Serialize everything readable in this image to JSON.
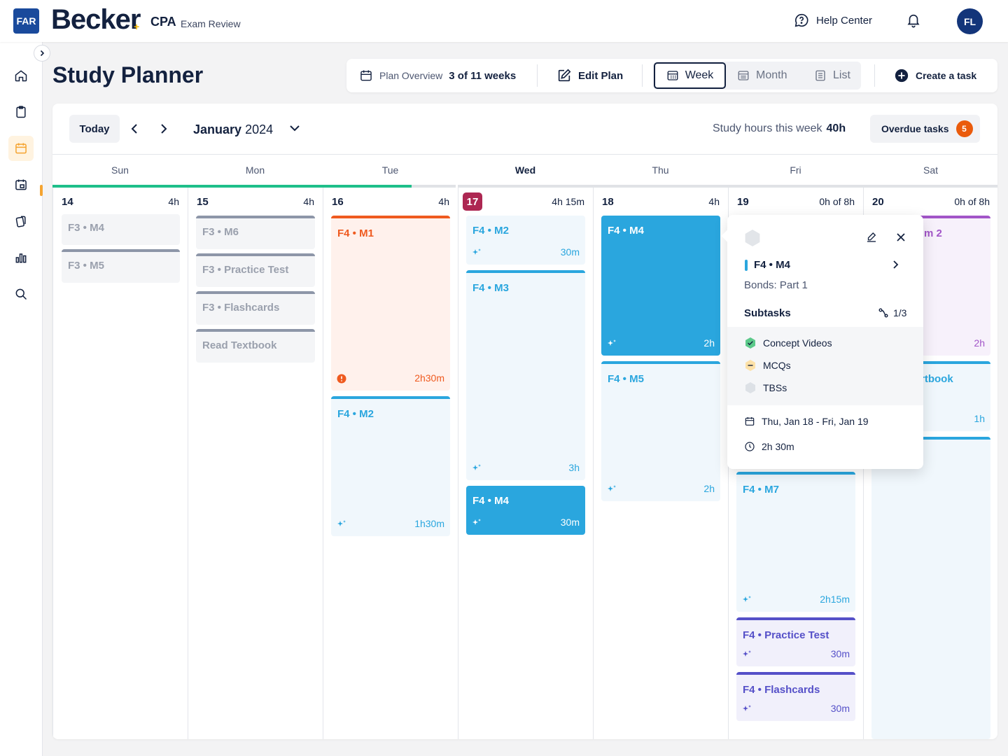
{
  "header": {
    "exam_badge": "FAR",
    "brand": "Becker",
    "brand_plus": "+",
    "product": "CPA",
    "product_sub": "Exam Review",
    "help_label": "Help Center",
    "avatar_initials": "FL"
  },
  "sidebar": {
    "items": [
      "home-icon",
      "clipboard-icon",
      "calendar-icon",
      "calendar-refresh-icon",
      "flashcards-icon",
      "bar-chart-icon",
      "search-icon"
    ],
    "active_index": 2,
    "accent": "#f5a431"
  },
  "page": {
    "title": "Study Planner"
  },
  "toolbar": {
    "plan_label": "Plan Overview",
    "plan_value": "3 of 11 weeks",
    "edit_label": "Edit Plan",
    "views": [
      "Week",
      "Month",
      "List"
    ],
    "selected_view": "Week",
    "create_label": "Create a task"
  },
  "calendar": {
    "today_label": "Today",
    "month_name": "January",
    "year": "2024",
    "hours_label": "Study hours this week",
    "hours_value": "40h",
    "overdue_label": "Overdue tasks",
    "overdue_count": "5",
    "progress_fraction": 0.38,
    "days": [
      {
        "name": "Sun",
        "num": "14",
        "hours": "4h"
      },
      {
        "name": "Mon",
        "num": "15",
        "hours": "4h"
      },
      {
        "name": "Tue",
        "num": "16",
        "hours": "4h"
      },
      {
        "name": "Wed",
        "num": "17",
        "hours": "4h 15m",
        "current": true
      },
      {
        "name": "Thu",
        "num": "18",
        "hours": "4h"
      },
      {
        "name": "Fri",
        "num": "19",
        "hours": "0h of 8h"
      },
      {
        "name": "Sat",
        "num": "20",
        "hours": "0h of 8h"
      }
    ],
    "tasks": {
      "sun": [
        "F3 • M4",
        "F3 • M5"
      ],
      "mon": [
        "F3 • M6",
        "F3 • Practice Test",
        "F3 • Flashcards",
        "Read Textbook"
      ],
      "tue": [
        {
          "label": "F4 • M1",
          "dur": "2h30m"
        },
        {
          "label": "F4 • M2",
          "dur": "1h30m"
        }
      ],
      "wed": [
        {
          "label": "F4 • M2",
          "dur": "30m"
        },
        {
          "label": "F4 • M3",
          "dur": "3h"
        },
        {
          "label": "F4 • M4",
          "dur": "30m"
        }
      ],
      "thu": [
        {
          "label": "F4 • M4",
          "dur": "2h"
        },
        {
          "label": "F4 • M5",
          "dur": "2h"
        }
      ],
      "fri": [
        {
          "label": "F4 • M7",
          "dur": "2h15m"
        },
        {
          "label": "F4 • Practice Test",
          "dur": "30m"
        },
        {
          "label": "F4 • Flashcards",
          "dur": "30m"
        }
      ],
      "sat": [
        {
          "label": "m 2",
          "dur": "2h"
        },
        {
          "label": "rtbook",
          "dur": "1h"
        }
      ]
    }
  },
  "popup": {
    "title": "F4 • M4",
    "subtitle": "Bonds: Part 1",
    "subtasks_label": "Subtasks",
    "subtasks_count": "1/3",
    "subtasks": [
      "Concept Videos",
      "MCQs",
      "TBSs"
    ],
    "date_range": "Thu, Jan 18 - Fri, Jan 19",
    "duration": "2h 30m"
  },
  "colors": {
    "gray_task": "#8d96a8",
    "orange_task": "#ef5a1f",
    "blue_task": "#2aa6de",
    "purple_task": "#5550c8",
    "violet_task": "#a255c8",
    "progress": "#1fbf8a",
    "current_day": "#ad2752"
  }
}
